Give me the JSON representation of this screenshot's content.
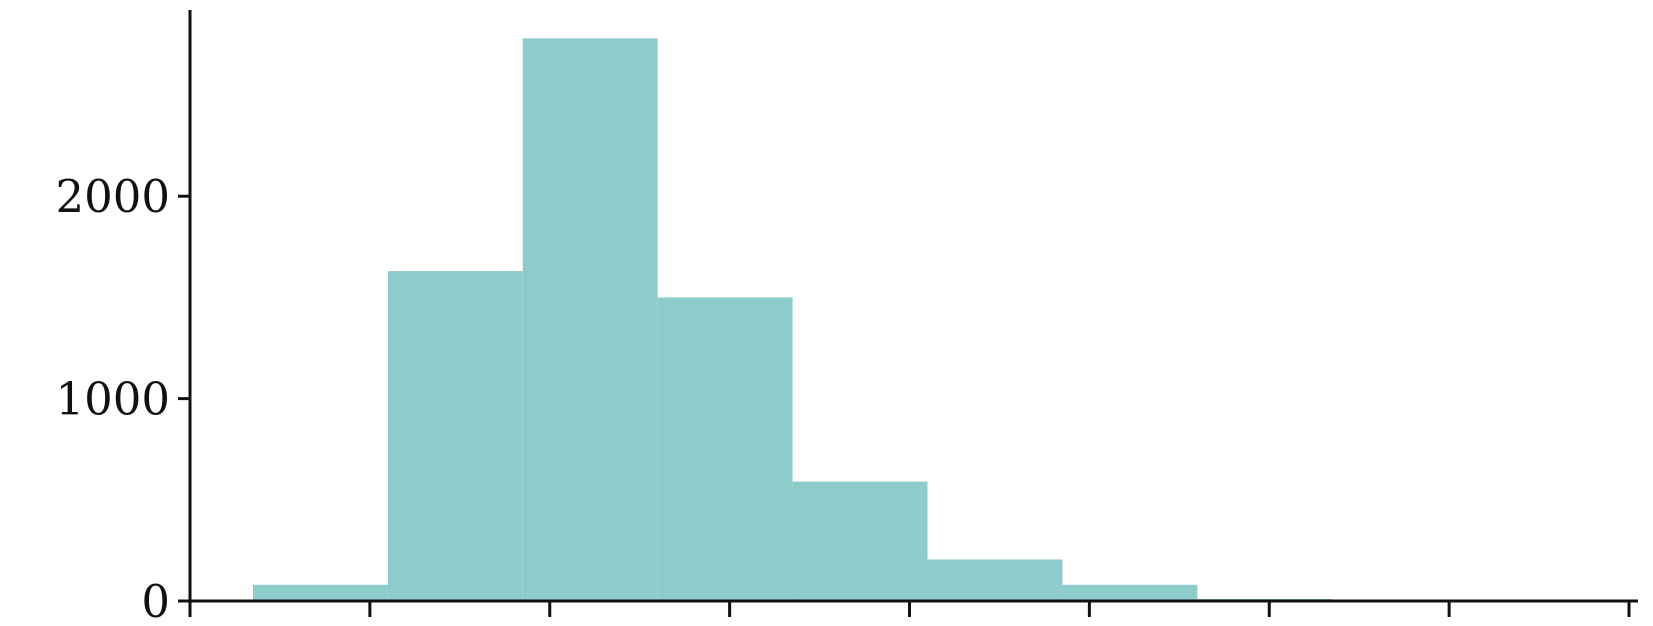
{
  "chart_data": {
    "type": "bar",
    "subtype": "histogram",
    "title": "",
    "xlabel": "",
    "ylabel": "",
    "bars": [
      {
        "x0": -0.5,
        "x1": 0.25,
        "value": 80
      },
      {
        "x0": 0.25,
        "x1": 1.0,
        "value": 1630
      },
      {
        "x0": 1.0,
        "x1": 1.75,
        "value": 2780
      },
      {
        "x0": 1.75,
        "x1": 2.5,
        "value": 1500
      },
      {
        "x0": 2.5,
        "x1": 3.25,
        "value": 590
      },
      {
        "x0": 3.25,
        "x1": 4.0,
        "value": 205
      },
      {
        "x0": 4.0,
        "x1": 4.75,
        "value": 80
      },
      {
        "x0": 4.75,
        "x1": 5.5,
        "value": 10
      }
    ],
    "xlim": [
      -0.85,
      7.2
    ],
    "ylim": [
      0,
      2920
    ],
    "x_ticks": [
      -0.85,
      0.15,
      1.15,
      2.15,
      3.15,
      4.15,
      5.15,
      6.15,
      7.15
    ],
    "x_tick_labels": [
      "",
      "",
      "",
      "",
      "",
      "",
      "",
      "",
      ""
    ],
    "y_ticks": [
      0,
      1000,
      2000
    ],
    "y_tick_labels": [
      "0",
      "1000",
      "2000"
    ],
    "grid": false,
    "bar_color": "#8ecbcb",
    "axis_color": "#111111"
  }
}
